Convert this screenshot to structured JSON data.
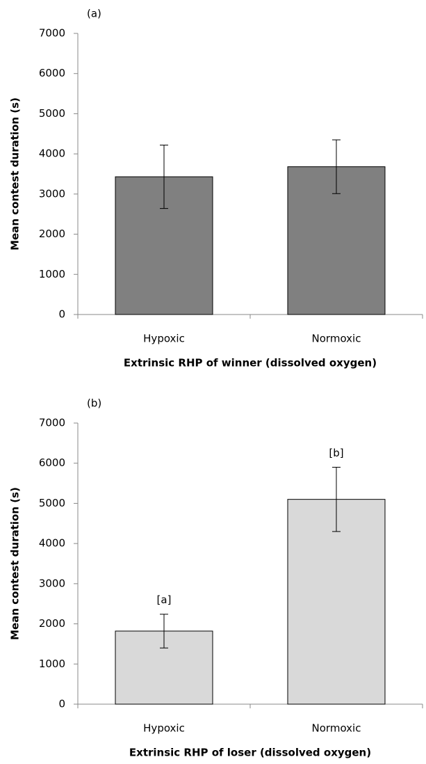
{
  "chart_data": [
    {
      "type": "bar",
      "title": "(a)",
      "x_label": "Extrinsic RHP of winner (dissolved oxygen)",
      "y_label": "Mean contest duration (s)",
      "categories": [
        "Hypoxic",
        "Normoxic"
      ],
      "values": [
        3430,
        3680
      ],
      "errors": [
        790,
        670
      ],
      "color": "#808080",
      "ylim": [
        0,
        7000
      ],
      "yticks": [
        0,
        1000,
        2000,
        3000,
        4000,
        5000,
        6000,
        7000
      ]
    },
    {
      "type": "bar",
      "title": "(b)",
      "x_label": "Extrinsic RHP of loser (dissolved oxygen)",
      "y_label": "Mean contest duration (s)",
      "categories": [
        "Hypoxic",
        "Normoxic"
      ],
      "values": [
        1820,
        5100
      ],
      "errors": [
        420,
        800
      ],
      "annotations": [
        "[a]",
        "[b]"
      ],
      "color": "#d9d9d9",
      "ylim": [
        0,
        7000
      ],
      "yticks": [
        0,
        1000,
        2000,
        3000,
        4000,
        5000,
        6000,
        7000
      ]
    }
  ]
}
